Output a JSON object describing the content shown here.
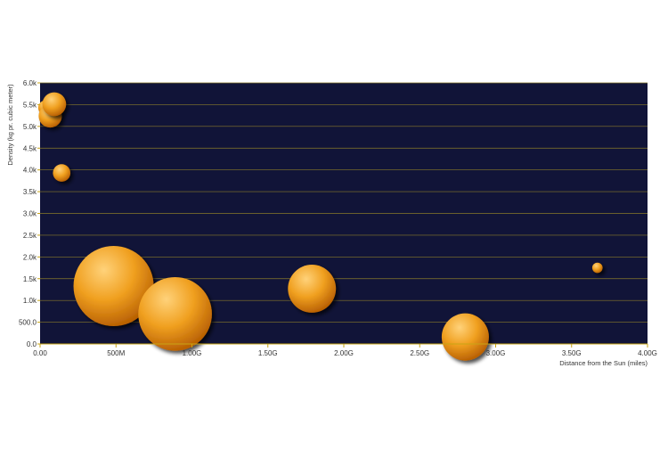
{
  "chart_data": {
    "type": "scatter",
    "subtype": "bubble",
    "xlabel": "Distance from the Sun (miles)",
    "ylabel": "Density (kg pr. cubic meter)",
    "xlim": [
      0,
      4000000000
    ],
    "ylim": [
      0,
      6000
    ],
    "grid": "horizontal",
    "legend": "none",
    "x_ticks": [
      0,
      500000000,
      1000000000,
      1500000000,
      2000000000,
      2500000000,
      3000000000,
      3500000000,
      4000000000
    ],
    "x_tick_labels": [
      "0.00",
      "500M",
      "1.00G",
      "1.50G",
      "2.00G",
      "2.50G",
      "3.00G",
      "3.50G",
      "4.00G"
    ],
    "y_ticks": [
      0,
      500,
      1000,
      1500,
      2000,
      2500,
      3000,
      3500,
      4000,
      4500,
      5000,
      5500,
      6000
    ],
    "y_tick_labels": [
      "0.0",
      "500.0",
      "1.0k",
      "1.5k",
      "2.0k",
      "2.5k",
      "3.0k",
      "3.5k",
      "4.0k",
      "4.5k",
      "5.0k",
      "5.5k",
      "6.0k"
    ],
    "colors": {
      "plot_background": "#111438",
      "grid": "#8a7a2a",
      "axis": "#c8a415",
      "bubble_light": "#ffd27a",
      "bubble_mid": "#f0a020",
      "bubble_dark": "#b35a00"
    },
    "points": [
      {
        "x": 36000000,
        "y": 5430,
        "size": 2.4
      },
      {
        "x": 67000000,
        "y": 5240,
        "size": 6.0
      },
      {
        "x": 93000000,
        "y": 5510,
        "size": 6.3
      },
      {
        "x": 142000000,
        "y": 3930,
        "size": 3.4
      },
      {
        "x": 484000000,
        "y": 1330,
        "size": 71.5
      },
      {
        "x": 889000000,
        "y": 690,
        "size": 60.3
      },
      {
        "x": 1790000000,
        "y": 1270,
        "size": 25.6
      },
      {
        "x": 2800000000,
        "y": 160,
        "size": 24.8
      },
      {
        "x": 3670000000,
        "y": 1750,
        "size": 1.2
      }
    ]
  }
}
